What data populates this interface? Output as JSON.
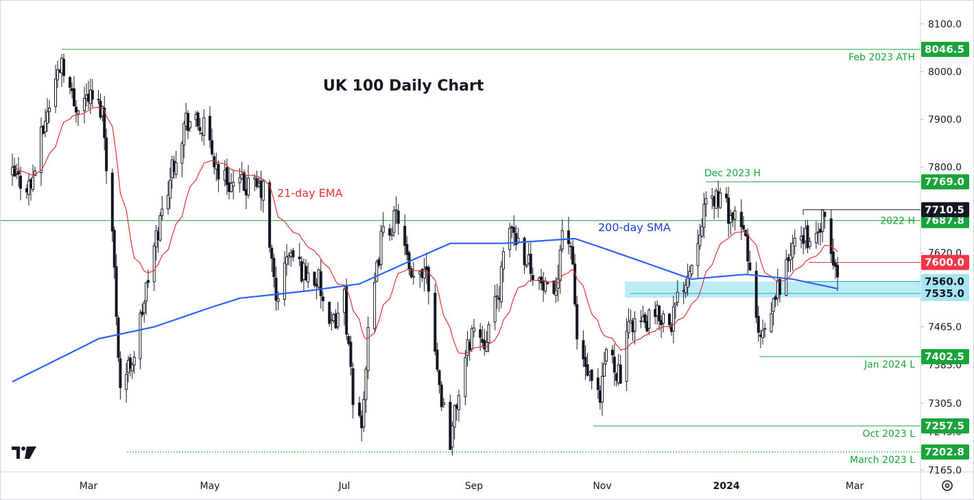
{
  "chart_data": {
    "type": "candlestick",
    "title": "UK 100 Daily Chart",
    "x_axis": {
      "ticks": [
        "Mar",
        "May",
        "Jul",
        "Sep",
        "Nov",
        "2024",
        "Mar"
      ],
      "start_date": "2023-01-23",
      "end_date": "2024-03-25"
    },
    "y_axis": {
      "ticks": [
        "8100.0",
        "8000.0",
        "7900.0",
        "7800.0",
        "7620.0",
        "7465.0",
        "7385.0",
        "7305.0",
        "7245.0",
        "7165.0"
      ],
      "range": [
        7150,
        8130
      ],
      "side": "right"
    },
    "levels": [
      {
        "label": "Feb 2023 ATH",
        "value": "8046.5"
      },
      {
        "label": "Dec 2023 H",
        "value": "7769.0"
      },
      {
        "label": "2022 H",
        "value": "7687.8"
      },
      {
        "label": "Jan 2024 L",
        "value": "7402.5"
      },
      {
        "label": "Oct 2023 L",
        "value": "7257.5"
      },
      {
        "label": "March 2023 L",
        "value": "7202.8"
      }
    ],
    "price_badges": [
      {
        "value": "7710.5",
        "style": "dark"
      },
      {
        "value": "7600.0",
        "style": "red"
      },
      {
        "value": "7560.0",
        "style": "cyan"
      },
      {
        "value": "7535.0",
        "style": "cyan"
      }
    ],
    "support_zone": {
      "from": 7535.0,
      "to": 7560.0
    },
    "indicators": [
      {
        "name": "21-day EMA",
        "color": "#e03131"
      },
      {
        "name": "200-day SMA",
        "color": "#2962ff"
      }
    ],
    "series": {
      "close_anchors": [
        [
          "2023-01-23",
          7780
        ],
        [
          "2023-02-01",
          7760
        ],
        [
          "2023-02-08",
          7900
        ],
        [
          "2023-02-16",
          8030
        ],
        [
          "2023-02-22",
          7930
        ],
        [
          "2023-03-01",
          7950
        ],
        [
          "2023-03-08",
          7920
        ],
        [
          "2023-03-13",
          7660
        ],
        [
          "2023-03-17",
          7340
        ],
        [
          "2023-03-24",
          7410
        ],
        [
          "2023-03-28",
          7500
        ],
        [
          "2023-04-04",
          7650
        ],
        [
          "2023-04-12",
          7800
        ],
        [
          "2023-04-19",
          7900
        ],
        [
          "2023-04-28",
          7880
        ],
        [
          "2023-05-05",
          7790
        ],
        [
          "2023-05-12",
          7760
        ],
        [
          "2023-05-19",
          7760
        ],
        [
          "2023-05-26",
          7750
        ],
        [
          "2023-06-01",
          7520
        ],
        [
          "2023-06-07",
          7620
        ],
        [
          "2023-06-14",
          7580
        ],
        [
          "2023-06-21",
          7560
        ],
        [
          "2023-06-26",
          7450
        ],
        [
          "2023-07-03",
          7530
        ],
        [
          "2023-07-07",
          7300
        ],
        [
          "2023-07-11",
          7270
        ],
        [
          "2023-07-14",
          7440
        ],
        [
          "2023-07-20",
          7650
        ],
        [
          "2023-07-28",
          7700
        ],
        [
          "2023-08-03",
          7550
        ],
        [
          "2023-08-10",
          7600
        ],
        [
          "2023-08-16",
          7340
        ],
        [
          "2023-08-21",
          7230
        ],
        [
          "2023-08-25",
          7330
        ],
        [
          "2023-08-31",
          7460
        ],
        [
          "2023-09-06",
          7440
        ],
        [
          "2023-09-12",
          7520
        ],
        [
          "2023-09-18",
          7680
        ],
        [
          "2023-09-25",
          7620
        ],
        [
          "2023-10-02",
          7560
        ],
        [
          "2023-10-09",
          7510
        ],
        [
          "2023-10-13",
          7670
        ],
        [
          "2023-10-17",
          7640
        ],
        [
          "2023-10-20",
          7440
        ],
        [
          "2023-10-26",
          7350
        ],
        [
          "2023-10-31",
          7300
        ],
        [
          "2023-11-03",
          7420
        ],
        [
          "2023-11-10",
          7360
        ],
        [
          "2023-11-15",
          7480
        ],
        [
          "2023-11-22",
          7470
        ],
        [
          "2023-11-29",
          7490
        ],
        [
          "2023-12-05",
          7480
        ],
        [
          "2023-12-11",
          7560
        ],
        [
          "2023-12-15",
          7600
        ],
        [
          "2023-12-20",
          7700
        ],
        [
          "2023-12-27",
          7740
        ],
        [
          "2024-01-03",
          7700
        ],
        [
          "2024-01-10",
          7650
        ],
        [
          "2024-01-16",
          7440
        ],
        [
          "2024-01-19",
          7440
        ],
        [
          "2024-01-24",
          7530
        ],
        [
          "2024-01-31",
          7620
        ],
        [
          "2024-02-06",
          7660
        ],
        [
          "2024-02-12",
          7640
        ],
        [
          "2024-02-15",
          7690
        ],
        [
          "2024-02-20",
          7600
        ],
        [
          "2024-02-22",
          7560
        ]
      ]
    }
  },
  "branding": {
    "logo": "tradingview-logo"
  },
  "controls": {
    "settings_icon": "gear-icon"
  }
}
